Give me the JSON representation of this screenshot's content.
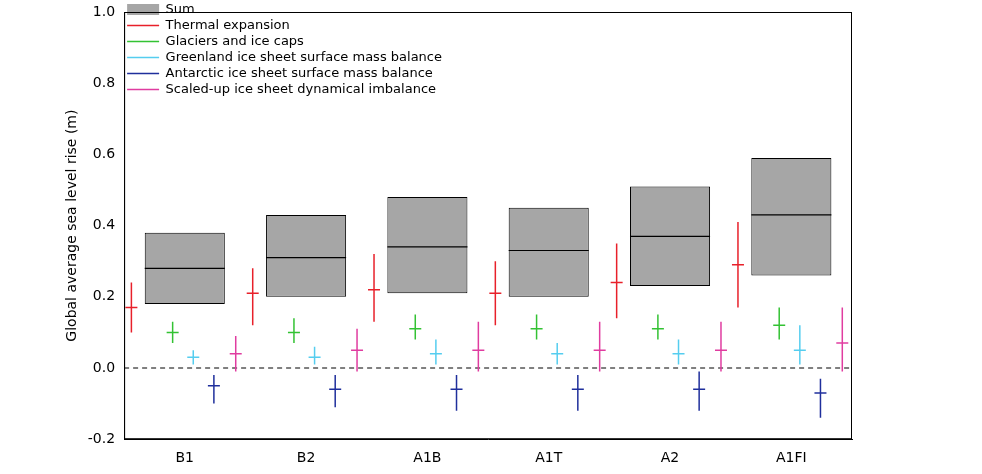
{
  "chart_data": {
    "type": "bar",
    "y_label": "Global average sea level rise (m)",
    "categories": [
      "B1",
      "B2",
      "A1B",
      "A1T",
      "A2",
      "A1FI"
    ],
    "ylim": [
      -0.2,
      1.0
    ],
    "yticks": [
      -0.2,
      {
        "value": 0,
        "label": "0.0"
      },
      0.2,
      0.4,
      0.6,
      0.8,
      {
        "value": 1,
        "label": "1.0"
      }
    ],
    "grid": false,
    "legend": "upper left",
    "series": [
      {
        "name": "Sum",
        "type": "bar",
        "color": "#a6a6a6",
        "values": [
          0.28,
          0.31,
          0.34,
          0.33,
          0.37,
          0.43
        ],
        "low": [
          0.18,
          0.2,
          0.21,
          0.2,
          0.23,
          0.26
        ],
        "high": [
          0.38,
          0.43,
          0.48,
          0.45,
          0.51,
          0.59
        ]
      },
      {
        "name": "Thermal expansion",
        "type": "errorbar",
        "color": "#e8202a",
        "values": [
          0.17,
          0.21,
          0.22,
          0.21,
          0.24,
          0.29
        ],
        "low": [
          0.1,
          0.12,
          0.13,
          0.12,
          0.14,
          0.17
        ],
        "high": [
          0.24,
          0.28,
          0.32,
          0.3,
          0.35,
          0.41
        ]
      },
      {
        "name": "Glaciers and ice caps",
        "type": "errorbar",
        "color": "#33c233",
        "values": [
          0.1,
          0.1,
          0.11,
          0.11,
          0.11,
          0.12
        ],
        "low": [
          0.07,
          0.07,
          0.08,
          0.08,
          0.08,
          0.08
        ],
        "high": [
          0.13,
          0.14,
          0.15,
          0.15,
          0.15,
          0.17
        ]
      },
      {
        "name": "Greenland ice sheet surface mass balance",
        "type": "errorbar",
        "color": "#55cdef",
        "values": [
          0.03,
          0.03,
          0.04,
          0.04,
          0.04,
          0.05
        ],
        "low": [
          0.01,
          0.01,
          0.01,
          0.01,
          0.01,
          0.01
        ],
        "high": [
          0.05,
          0.06,
          0.08,
          0.07,
          0.08,
          0.12
        ]
      },
      {
        "name": "Antarctic ice sheet surface mass balance",
        "type": "errorbar",
        "color": "#1f2f9c",
        "values": [
          -0.05,
          -0.06,
          -0.06,
          -0.06,
          -0.06,
          -0.07
        ],
        "low": [
          -0.1,
          -0.11,
          -0.12,
          -0.12,
          -0.12,
          -0.14
        ],
        "high": [
          -0.02,
          -0.02,
          -0.02,
          -0.02,
          -0.01,
          -0.03
        ]
      },
      {
        "name": "Scaled-up ice sheet dynamical imbalance",
        "type": "errorbar",
        "color": "#e03ca0",
        "values": [
          0.04,
          0.05,
          0.05,
          0.05,
          0.05,
          0.07
        ],
        "low": [
          -0.01,
          -0.01,
          -0.01,
          -0.01,
          -0.01,
          -0.01
        ],
        "high": [
          0.09,
          0.11,
          0.13,
          0.13,
          0.13,
          0.17
        ]
      }
    ]
  }
}
